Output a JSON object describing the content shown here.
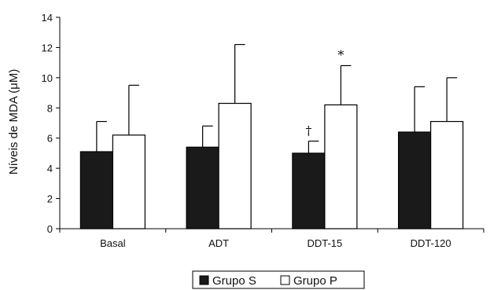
{
  "chart_data": {
    "type": "bar",
    "title": "",
    "xlabel": "",
    "ylabel": "Níveis de MDA (μM)",
    "ylim": [
      0,
      14
    ],
    "yticks": [
      0,
      2,
      4,
      6,
      8,
      10,
      12,
      14
    ],
    "categories": [
      "Basal",
      "ADT",
      "DDT-15",
      "DDT-120"
    ],
    "series": [
      {
        "name": "Grupo S",
        "color": "#1a1a1a",
        "values": [
          5.1,
          5.4,
          5.0,
          6.4
        ],
        "error_upper": [
          7.1,
          6.8,
          5.8,
          9.4
        ],
        "annotations": [
          "",
          "",
          "†",
          ""
        ]
      },
      {
        "name": "Grupo P",
        "color": "#ffffff",
        "values": [
          6.2,
          8.3,
          8.2,
          7.1
        ],
        "error_upper": [
          9.5,
          12.2,
          10.8,
          10.0
        ],
        "annotations": [
          "",
          "",
          "*",
          ""
        ]
      }
    ],
    "grid": false,
    "legend_position": "bottom-center"
  }
}
